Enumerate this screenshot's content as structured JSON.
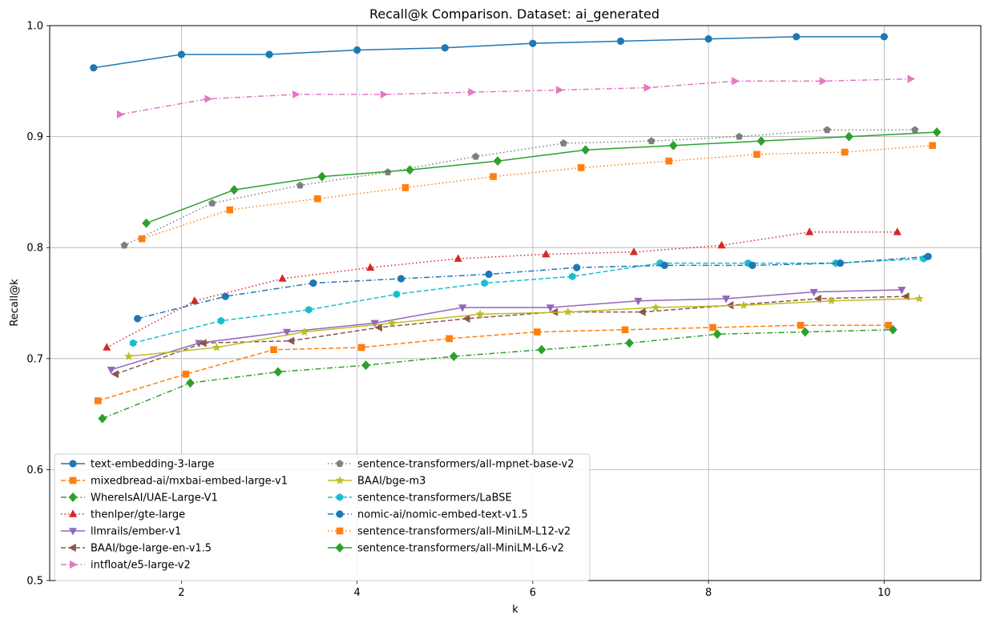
{
  "chart_data": {
    "type": "line",
    "title": "Recall@k Comparison. Dataset: ai_generated",
    "xlabel": "k",
    "ylabel": "Recall@k",
    "xlim": [
      0.5,
      11.1
    ],
    "ylim": [
      0.5,
      1.0
    ],
    "xticks": [
      2,
      4,
      6,
      8,
      10
    ],
    "yticks": [
      0.5,
      0.6,
      0.7,
      0.8,
      0.9,
      1.0
    ],
    "xtick_labels": [
      "2",
      "4",
      "6",
      "8",
      "10"
    ],
    "ytick_labels": [
      "0.5",
      "0.6",
      "0.7",
      "0.8",
      "0.9",
      "1.0"
    ],
    "grid": true,
    "legend_position": "lower-left",
    "series": [
      {
        "name": "text-embedding-3-large",
        "color": "#1f77b4",
        "dash": "solid",
        "marker": "circle",
        "x": [
          1,
          2,
          3,
          4,
          5,
          6,
          7,
          8,
          9,
          10
        ],
        "values": [
          0.962,
          0.974,
          0.974,
          0.978,
          0.98,
          0.984,
          0.986,
          0.988,
          0.99,
          0.99
        ]
      },
      {
        "name": "mixedbread-ai/mxbai-embed-large-v1",
        "color": "#ff7f0e",
        "dash": "dashed",
        "marker": "square",
        "x": [
          1.05,
          2.05,
          3.05,
          4.05,
          5.05,
          6.05,
          7.05,
          8.05,
          9.05,
          10.05
        ],
        "values": [
          0.662,
          0.686,
          0.708,
          0.71,
          0.718,
          0.724,
          0.726,
          0.728,
          0.73,
          0.73
        ]
      },
      {
        "name": "WhereIsAI/UAE-Large-V1",
        "color": "#2ca02c",
        "dash": "dashdot",
        "marker": "diamond",
        "x": [
          1.1,
          2.1,
          3.1,
          4.1,
          5.1,
          6.1,
          7.1,
          8.1,
          9.1,
          10.1
        ],
        "values": [
          0.646,
          0.678,
          0.688,
          0.694,
          0.702,
          0.708,
          0.714,
          0.722,
          0.724,
          0.726
        ]
      },
      {
        "name": "thenlper/gte-large",
        "color": "#d62728",
        "dash": "dotted",
        "marker": "triangle-up",
        "x": [
          1.15,
          2.15,
          3.15,
          4.15,
          5.15,
          6.15,
          7.15,
          8.15,
          9.15,
          10.15
        ],
        "values": [
          0.71,
          0.752,
          0.772,
          0.782,
          0.79,
          0.794,
          0.796,
          0.802,
          0.814,
          0.814
        ]
      },
      {
        "name": "llmrails/ember-v1",
        "color": "#9467bd",
        "dash": "solid",
        "marker": "triangle-down",
        "x": [
          1.2,
          2.2,
          3.2,
          4.2,
          5.2,
          6.2,
          7.2,
          8.2,
          9.2,
          10.2
        ],
        "values": [
          0.69,
          0.714,
          0.724,
          0.732,
          0.746,
          0.746,
          0.752,
          0.754,
          0.76,
          0.762
        ]
      },
      {
        "name": "BAAI/bge-large-en-v1.5",
        "color": "#8c564b",
        "dash": "dashed",
        "marker": "triangle-left",
        "x": [
          1.25,
          2.25,
          3.25,
          4.25,
          5.25,
          6.25,
          7.25,
          8.25,
          9.25,
          10.25
        ],
        "values": [
          0.686,
          0.714,
          0.716,
          0.728,
          0.736,
          0.742,
          0.742,
          0.748,
          0.754,
          0.756
        ]
      },
      {
        "name": "intfloat/e5-large-v2",
        "color": "#e377c2",
        "dash": "dashdot",
        "marker": "triangle-right",
        "x": [
          1.3,
          2.3,
          3.3,
          4.3,
          5.3,
          6.3,
          7.3,
          8.3,
          9.3,
          10.3
        ],
        "values": [
          0.92,
          0.934,
          0.938,
          0.938,
          0.94,
          0.942,
          0.944,
          0.95,
          0.95,
          0.952
        ]
      },
      {
        "name": "sentence-transformers/all-mpnet-base-v2",
        "color": "#7f7f7f",
        "dash": "dotted",
        "marker": "pentagon",
        "x": [
          1.35,
          2.35,
          3.35,
          4.35,
          5.35,
          6.35,
          7.35,
          8.35,
          9.35,
          10.35
        ],
        "values": [
          0.802,
          0.84,
          0.856,
          0.868,
          0.882,
          0.894,
          0.896,
          0.9,
          0.906,
          0.906
        ]
      },
      {
        "name": "BAAI/bge-m3",
        "color": "#bcbd22",
        "dash": "solid",
        "marker": "star",
        "x": [
          1.4,
          2.4,
          3.4,
          4.4,
          5.4,
          6.4,
          7.4,
          8.4,
          9.4,
          10.4
        ],
        "values": [
          0.702,
          0.71,
          0.724,
          0.732,
          0.74,
          0.742,
          0.746,
          0.748,
          0.752,
          0.754
        ]
      },
      {
        "name": "sentence-transformers/LaBSE",
        "color": "#17becf",
        "dash": "dashed",
        "marker": "hexagon",
        "x": [
          1.45,
          2.45,
          3.45,
          4.45,
          5.45,
          6.45,
          7.45,
          8.45,
          9.45,
          10.45
        ],
        "values": [
          0.714,
          0.734,
          0.744,
          0.758,
          0.768,
          0.774,
          0.786,
          0.786,
          0.786,
          0.79
        ]
      },
      {
        "name": "nomic-ai/nomic-embed-text-v1.5",
        "color": "#1f77b4",
        "dash": "dashdot",
        "marker": "circle",
        "x": [
          1.5,
          2.5,
          3.5,
          4.5,
          5.5,
          6.5,
          7.5,
          8.5,
          9.5,
          10.5
        ],
        "values": [
          0.736,
          0.756,
          0.768,
          0.772,
          0.776,
          0.782,
          0.784,
          0.784,
          0.786,
          0.792
        ]
      },
      {
        "name": "sentence-transformers/all-MiniLM-L12-v2",
        "color": "#ff7f0e",
        "dash": "dotted",
        "marker": "square",
        "x": [
          1.55,
          2.55,
          3.55,
          4.55,
          5.55,
          6.55,
          7.55,
          8.55,
          9.55,
          10.55
        ],
        "values": [
          0.808,
          0.834,
          0.844,
          0.854,
          0.864,
          0.872,
          0.878,
          0.884,
          0.886,
          0.892
        ]
      },
      {
        "name": "sentence-transformers/all-MiniLM-L6-v2",
        "color": "#2ca02c",
        "dash": "solid",
        "marker": "diamond",
        "x": [
          1.6,
          2.6,
          3.6,
          4.6,
          5.6,
          6.6,
          7.6,
          8.6,
          9.6,
          10.6
        ],
        "values": [
          0.822,
          0.852,
          0.864,
          0.87,
          0.878,
          0.888,
          0.892,
          0.896,
          0.9,
          0.904
        ]
      }
    ]
  }
}
